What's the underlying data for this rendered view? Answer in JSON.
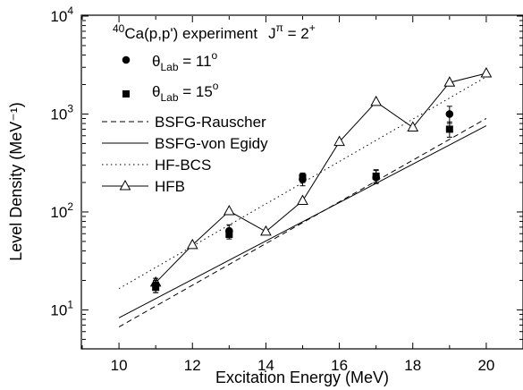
{
  "chart_data": {
    "type": "scatter",
    "title": "",
    "xlabel": "Excitation Energy (MeV)",
    "ylabel": "Level Density (MeV⁻¹)",
    "xlim": [
      9,
      21
    ],
    "ylim": [
      4,
      10000
    ],
    "yscale": "log",
    "grid": false,
    "x_ticks": [
      10,
      12,
      14,
      16,
      18,
      20
    ],
    "y_ticks": [
      10,
      100,
      1000,
      10000
    ],
    "legend_position": "top-left",
    "experiment_label": "40Ca(p,p') experiment Jπ = 2+",
    "experiment_label_parts": {
      "mass": "40",
      "reaction": "Ca(p,p') experiment",
      "j": "J",
      "pi": "π",
      "eq": " = 2",
      "plus": "+"
    },
    "series": [
      {
        "name": "θLab = 11o",
        "label_parts": {
          "theta": "θ",
          "sub": "Lab",
          "eq": " = 11",
          "sup": "o"
        },
        "marker": "circle",
        "x": [
          11,
          13,
          15,
          17,
          19
        ],
        "y": [
          18,
          64,
          215,
          225,
          1000
        ],
        "yerr_low": [
          15,
          55,
          185,
          195,
          800
        ],
        "yerr_high": [
          21,
          74,
          245,
          265,
          1200
        ]
      },
      {
        "name": "θLab = 15o",
        "label_parts": {
          "theta": "θ",
          "sub": "Lab",
          "eq": " = 15",
          "sup": "o"
        },
        "marker": "square",
        "x": [
          11,
          13,
          15,
          17,
          19
        ],
        "y": [
          17,
          59,
          225,
          232,
          700
        ],
        "yerr_low": [
          15,
          53,
          200,
          200,
          580
        ],
        "yerr_high": [
          20,
          66,
          250,
          270,
          830
        ]
      },
      {
        "name": "BSFG-Rauscher",
        "style": "dashed",
        "x": [
          10,
          20
        ],
        "y": [
          6.7,
          900
        ]
      },
      {
        "name": "BSFG-von Egidy",
        "style": "solid",
        "x": [
          10,
          20
        ],
        "y": [
          8.3,
          760
        ]
      },
      {
        "name": "HF-BCS",
        "style": "dotted",
        "x": [
          10,
          20
        ],
        "y": [
          16.5,
          2400
        ]
      },
      {
        "name": "HFB",
        "style": "line-triangle",
        "x": [
          11,
          12,
          13,
          14,
          15,
          16,
          17,
          18,
          19,
          20
        ],
        "y": [
          19,
          46,
          102,
          63,
          130,
          520,
          1330,
          730,
          2100,
          2600
        ]
      }
    ]
  }
}
